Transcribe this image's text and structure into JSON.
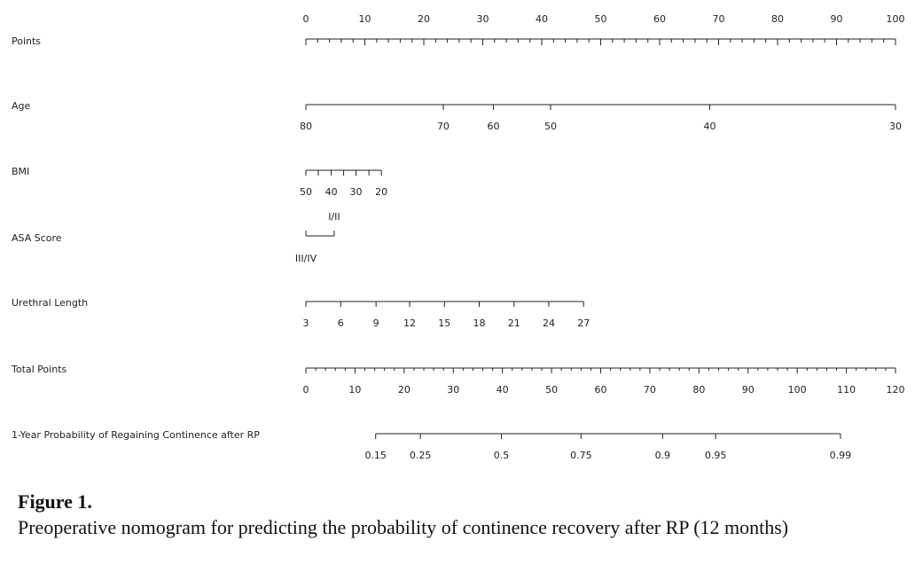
{
  "figure": {
    "title": "Figure 1.",
    "text": "Preoperative nomogram for predicting the probability of continence recovery after RP (12 months)"
  },
  "chart_data": {
    "type": "nomogram",
    "points_scale": [
      0,
      100
    ],
    "total_points_scale": [
      0,
      120
    ],
    "rows": [
      {
        "label": "Points",
        "ticks": [
          {
            "value": 0,
            "label": "0"
          },
          {
            "value": 10,
            "label": "10"
          },
          {
            "value": 20,
            "label": "20"
          },
          {
            "value": 30,
            "label": "30"
          },
          {
            "value": 40,
            "label": "40"
          },
          {
            "value": 50,
            "label": "50"
          },
          {
            "value": 60,
            "label": "60"
          },
          {
            "value": 70,
            "label": "70"
          },
          {
            "value": 80,
            "label": "80"
          },
          {
            "value": 90,
            "label": "90"
          },
          {
            "value": 100,
            "label": "100"
          }
        ],
        "minor_step": 2
      },
      {
        "label": "Age",
        "ticks": [
          {
            "value": 80,
            "points": 0,
            "label": "80"
          },
          {
            "value": 70,
            "points": 23.3,
            "label": "70"
          },
          {
            "value": 60,
            "points": 31.8,
            "label": "60"
          },
          {
            "value": 50,
            "points": 41.5,
            "label": "50"
          },
          {
            "value": 40,
            "points": 68.5,
            "label": "40"
          },
          {
            "value": 30,
            "points": 100,
            "label": "30"
          }
        ]
      },
      {
        "label": "BMI",
        "ticks": [
          {
            "value": 50,
            "points": 0,
            "label": "50"
          },
          {
            "value": 45,
            "points": 2.1,
            "label": ""
          },
          {
            "value": 40,
            "points": 4.3,
            "label": "40"
          },
          {
            "value": 35,
            "points": 6.4,
            "label": ""
          },
          {
            "value": 30,
            "points": 8.5,
            "label": "30"
          },
          {
            "value": 25,
            "points": 10.7,
            "label": ""
          },
          {
            "value": 20,
            "points": 12.8,
            "label": "20"
          }
        ]
      },
      {
        "label": "ASA Score",
        "ticks": [
          {
            "value": "III/IV",
            "points": 0,
            "label": "III/IV"
          },
          {
            "value": "I/II",
            "points": 4.8,
            "label": "I/II"
          }
        ]
      },
      {
        "label": "Urethral Length",
        "ticks": [
          {
            "value": 3,
            "points": 0,
            "label": "3"
          },
          {
            "value": 6,
            "points": 5.9,
            "label": "6"
          },
          {
            "value": 9,
            "points": 11.9,
            "label": "9"
          },
          {
            "value": 12,
            "points": 17.6,
            "label": "12"
          },
          {
            "value": 15,
            "points": 23.5,
            "label": "15"
          },
          {
            "value": 18,
            "points": 29.4,
            "label": "18"
          },
          {
            "value": 21,
            "points": 35.3,
            "label": "21"
          },
          {
            "value": 24,
            "points": 41.2,
            "label": "24"
          },
          {
            "value": 27,
            "points": 47.1,
            "label": "27"
          }
        ]
      },
      {
        "label": "Total Points",
        "ticks": [
          {
            "value": 0,
            "label": "0"
          },
          {
            "value": 10,
            "label": "10"
          },
          {
            "value": 20,
            "label": "20"
          },
          {
            "value": 30,
            "label": "30"
          },
          {
            "value": 40,
            "label": "40"
          },
          {
            "value": 50,
            "label": "50"
          },
          {
            "value": 60,
            "label": "60"
          },
          {
            "value": 70,
            "label": "70"
          },
          {
            "value": 80,
            "label": "80"
          },
          {
            "value": 90,
            "label": "90"
          },
          {
            "value": 100,
            "label": "100"
          },
          {
            "value": 110,
            "label": "110"
          },
          {
            "value": 120,
            "label": "120"
          }
        ],
        "minor_step": 2
      },
      {
        "label": "1-Year Probability of Regaining Continence after RP",
        "ticks": [
          {
            "value": 0.15,
            "total_points": 14.2,
            "label": "0.15"
          },
          {
            "value": 0.25,
            "total_points": 23.3,
            "label": "0.25"
          },
          {
            "value": 0.5,
            "total_points": 39.8,
            "label": "0.5"
          },
          {
            "value": 0.75,
            "total_points": 56.0,
            "label": "0.75"
          },
          {
            "value": 0.9,
            "total_points": 72.6,
            "label": "0.9"
          },
          {
            "value": 0.95,
            "total_points": 83.4,
            "label": "0.95"
          },
          {
            "value": 0.99,
            "total_points": 108.8,
            "label": "0.99"
          }
        ]
      }
    ]
  }
}
